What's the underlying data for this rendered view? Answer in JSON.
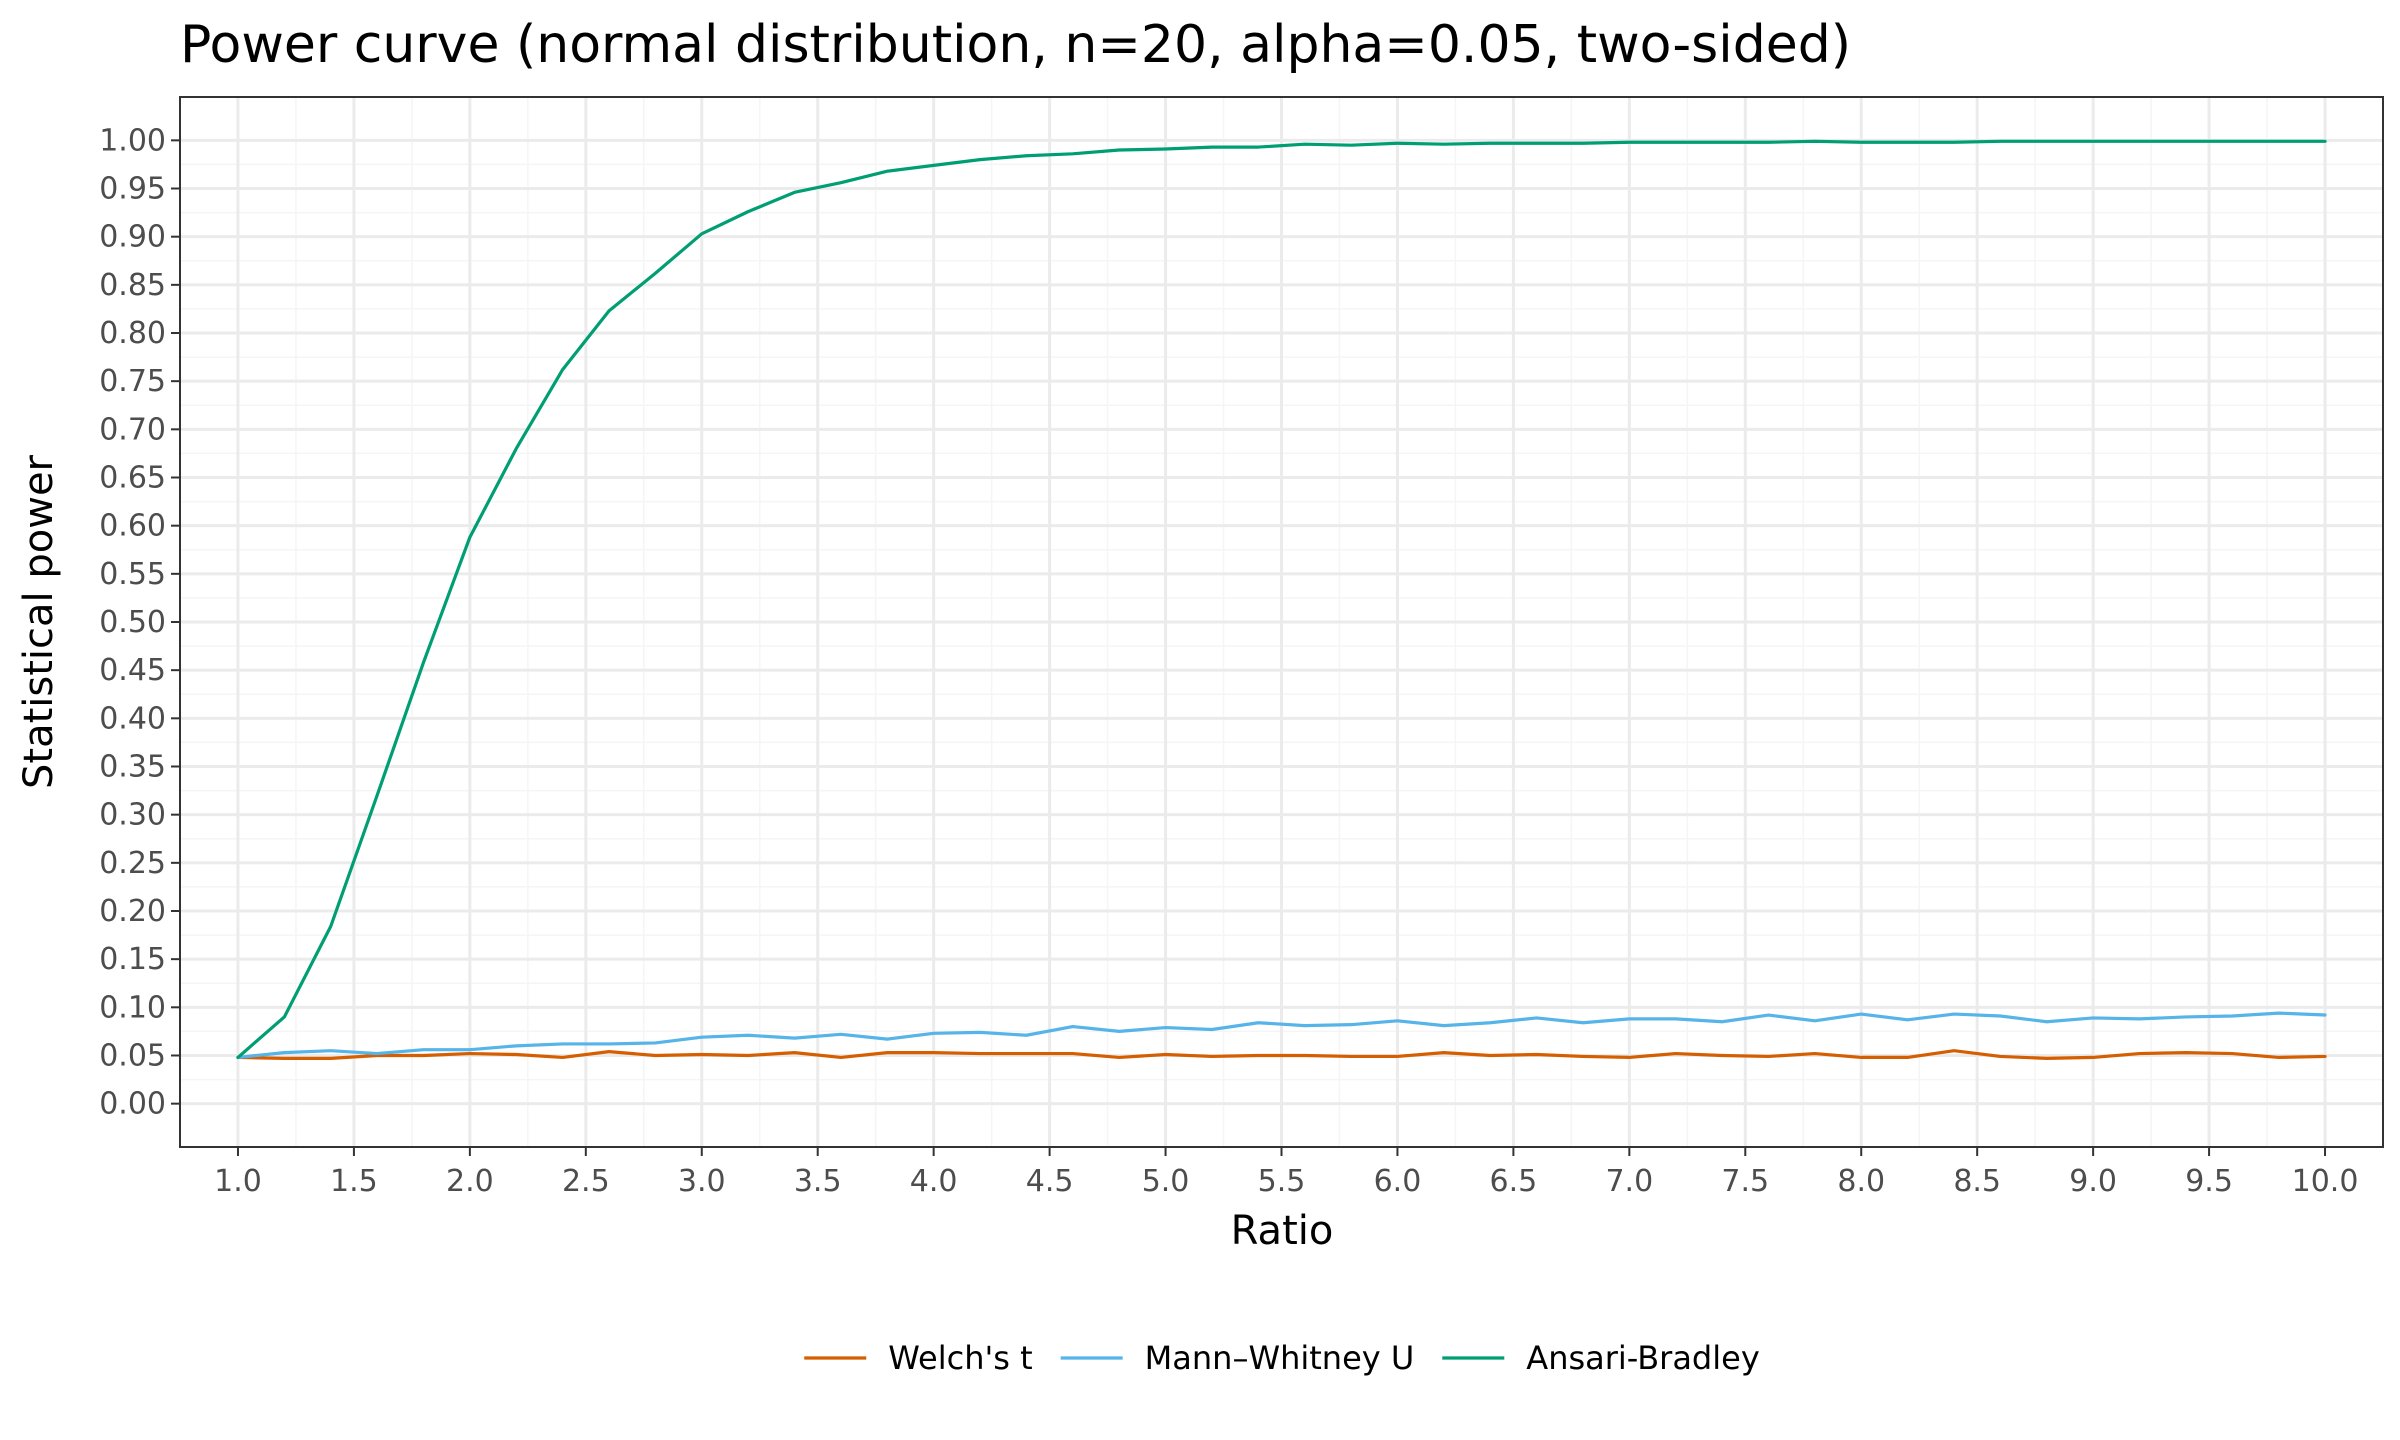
{
  "colors": {
    "welch": "#D55E00",
    "mann": "#56B4E9",
    "ansari": "#009E73",
    "grid_major": "#ebebeb",
    "grid_minor": "#f5f5f5",
    "panel_border": "#333333"
  },
  "chart_data": {
    "type": "line",
    "title": "Power curve (normal distribution, n=20, alpha=0.05, two-sided)",
    "xlabel": "Ratio",
    "ylabel": "Statistical power",
    "xlim": [
      0.75,
      10.25
    ],
    "ylim": [
      -0.045,
      1.045
    ],
    "x_ticks": [
      "1.0",
      "1.5",
      "2.0",
      "2.5",
      "3.0",
      "3.5",
      "4.0",
      "4.5",
      "5.0",
      "5.5",
      "6.0",
      "6.5",
      "7.0",
      "7.5",
      "8.0",
      "8.5",
      "9.0",
      "9.5",
      "10.0"
    ],
    "y_ticks": [
      "0.00",
      "0.05",
      "0.10",
      "0.15",
      "0.20",
      "0.25",
      "0.30",
      "0.35",
      "0.40",
      "0.45",
      "0.50",
      "0.55",
      "0.60",
      "0.65",
      "0.70",
      "0.75",
      "0.80",
      "0.85",
      "0.90",
      "0.95",
      "1.00"
    ],
    "grid": true,
    "legend_position": "bottom",
    "x": [
      1.0,
      1.2,
      1.4,
      1.6,
      1.8,
      2.0,
      2.2,
      2.4,
      2.6,
      2.8,
      3.0,
      3.2,
      3.4,
      3.6,
      3.8,
      4.0,
      4.2,
      4.4,
      4.6,
      4.8,
      5.0,
      5.2,
      5.4,
      5.6,
      5.8,
      6.0,
      6.2,
      6.4,
      6.6,
      6.8,
      7.0,
      7.2,
      7.4,
      7.6,
      7.8,
      8.0,
      8.2,
      8.4,
      8.6,
      8.8,
      9.0,
      9.2,
      9.4,
      9.6,
      9.8,
      10.0
    ],
    "series": [
      {
        "name": "Welch's t",
        "color": "#D55E00",
        "values": [
          0.048,
          0.047,
          0.047,
          0.05,
          0.05,
          0.052,
          0.051,
          0.048,
          0.054,
          0.05,
          0.051,
          0.05,
          0.053,
          0.048,
          0.053,
          0.053,
          0.052,
          0.052,
          0.052,
          0.048,
          0.051,
          0.049,
          0.05,
          0.05,
          0.049,
          0.049,
          0.053,
          0.05,
          0.051,
          0.049,
          0.048,
          0.052,
          0.05,
          0.049,
          0.052,
          0.048,
          0.048,
          0.055,
          0.049,
          0.047,
          0.048,
          0.052,
          0.053,
          0.052,
          0.048,
          0.049
        ]
      },
      {
        "name": "Mann–Whitney U",
        "color": "#56B4E9",
        "values": [
          0.048,
          0.053,
          0.055,
          0.052,
          0.056,
          0.056,
          0.06,
          0.062,
          0.062,
          0.063,
          0.069,
          0.071,
          0.068,
          0.072,
          0.067,
          0.073,
          0.074,
          0.071,
          0.08,
          0.075,
          0.079,
          0.077,
          0.084,
          0.081,
          0.082,
          0.086,
          0.081,
          0.084,
          0.089,
          0.084,
          0.088,
          0.088,
          0.085,
          0.092,
          0.086,
          0.093,
          0.087,
          0.093,
          0.091,
          0.085,
          0.089,
          0.088,
          0.09,
          0.091,
          0.094,
          0.092
        ]
      },
      {
        "name": "Ansari-Bradley",
        "color": "#009E73",
        "values": [
          0.048,
          0.09,
          0.184,
          0.32,
          0.458,
          0.588,
          0.68,
          0.762,
          0.823,
          0.862,
          0.903,
          0.926,
          0.946,
          0.956,
          0.968,
          0.974,
          0.98,
          0.984,
          0.986,
          0.99,
          0.991,
          0.993,
          0.993,
          0.996,
          0.995,
          0.997,
          0.996,
          0.997,
          0.997,
          0.997,
          0.998,
          0.998,
          0.998,
          0.998,
          0.999,
          0.998,
          0.998,
          0.998,
          0.999,
          0.999,
          0.999,
          0.999,
          0.999,
          0.999,
          0.999,
          0.999
        ]
      }
    ]
  }
}
